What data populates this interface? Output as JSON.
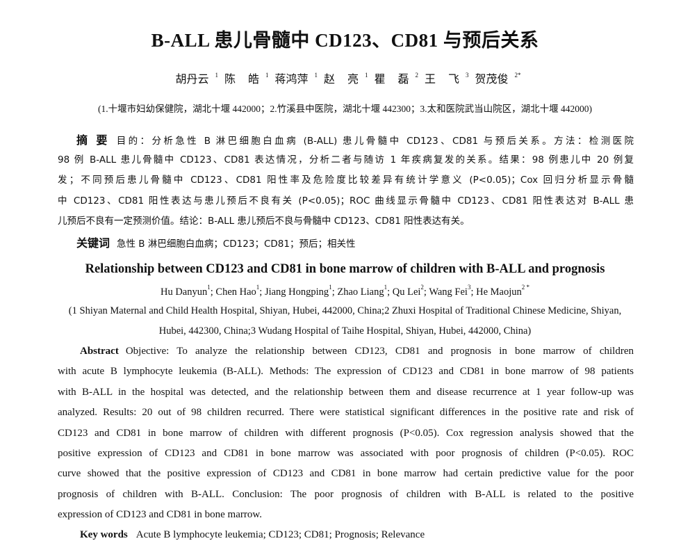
{
  "title": "B-ALL 患儿骨髓中 CD123、CD81 与预后关系",
  "authors_cn": [
    {
      "name": "胡丹云",
      "sup": "1"
    },
    {
      "name": "陈 皓",
      "sup": "1"
    },
    {
      "name": "蒋鸿萍",
      "sup": "1"
    },
    {
      "name": "赵 亮",
      "sup": "1"
    },
    {
      "name": "瞿 磊",
      "sup": "2"
    },
    {
      "name": "王 飞",
      "sup": "3"
    },
    {
      "name": "贺茂俊",
      "sup": "2*"
    }
  ],
  "affiliation_cn": "(1.十堰市妇幼保健院，湖北十堰 442000；2.竹溪县中医院，湖北十堰 442300；3.太和医院武当山院区，湖北十堰 442000)",
  "abstract_cn": {
    "label": "摘 要",
    "lines": [
      "目的：分析急性 B 淋巴细胞白血病 (B-ALL) 患儿骨髓中 CD123、CD81 与预后关系。方法：检测医院",
      "98 例 B-ALL 患儿骨髓中 CD123、CD81 表达情况，分析二者与随访 1 年疾病复发的关系。结果：98 例患儿中 20 例复",
      "发；不同预后患儿骨髓中 CD123、CD81 阳性率及危险度比较差异有统计学意义 (P<0.05)；Cox 回归分析显示骨髓",
      "中 CD123、CD81 阳性表达与患儿预后不良有关 (P<0.05)；ROC 曲线显示骨髓中 CD123、CD81 阳性表达对 B-ALL 患",
      "儿预后不良有一定预测价值。结论：B-ALL 患儿预后不良与骨髓中 CD123、CD81 阳性表达有关。"
    ]
  },
  "keywords_cn": {
    "label": "关键词",
    "text": "急性 B 淋巴细胞白血病；CD123；CD81；预后；相关性"
  },
  "title_en": "Relationship between CD123 and CD81 in bone marrow of children with B-ALL and prognosis",
  "authors_en": [
    {
      "name": "Hu Danyun",
      "sup": "1"
    },
    {
      "name": "Chen Hao",
      "sup": "1"
    },
    {
      "name": "Jiang Hongping",
      "sup": "1"
    },
    {
      "name": "Zhao Liang",
      "sup": "1"
    },
    {
      "name": "Qu Lei",
      "sup": "2"
    },
    {
      "name": "Wang Fei",
      "sup": "3"
    },
    {
      "name": "He Maojun",
      "sup": "2 *"
    }
  ],
  "affiliation_en": [
    "(1 Shiyan Maternal and Child Health Hospital, Shiyan, Hubei, 442000, China;2 Zhuxi Hospital of Traditional Chinese Medicine, Shiyan,",
    "Hubei, 442300, China;3 Wudang Hospital of Taihe Hospital, Shiyan, Hubei, 442000, China)"
  ],
  "abstract_en": {
    "label": "Abstract",
    "lines": [
      "Objective: To analyze the relationship between CD123, CD81 and prognosis in bone marrow of children",
      "with acute B lymphocyte leukemia (B-ALL). Methods: The expression of CD123 and CD81 in bone marrow of 98 patients",
      "with B-ALL in the hospital was detected, and the relationship between them and disease recurrence at 1 year follow-up was",
      "analyzed. Results: 20 out of 98 children recurred. There were statistical significant differences in the positive rate and risk of",
      "CD123 and CD81 in bone marrow of children with different prognosis (P<0.05). Cox regression analysis showed that the",
      "positive expression of CD123 and CD81 in bone marrow was associated with poor prognosis of children (P<0.05). ROC",
      "curve showed that the positive expression of CD123 and CD81 in bone marrow had certain predictive value for the poor",
      "prognosis of children with B-ALL. Conclusion: The poor prognosis of children with B-ALL is related to the positive",
      "expression of CD123 and CD81 in bone marrow."
    ]
  },
  "keywords_en": {
    "label": "Key words",
    "text": "Acute B lymphocyte leukemia; CD123; CD81; Prognosis; Relevance"
  }
}
